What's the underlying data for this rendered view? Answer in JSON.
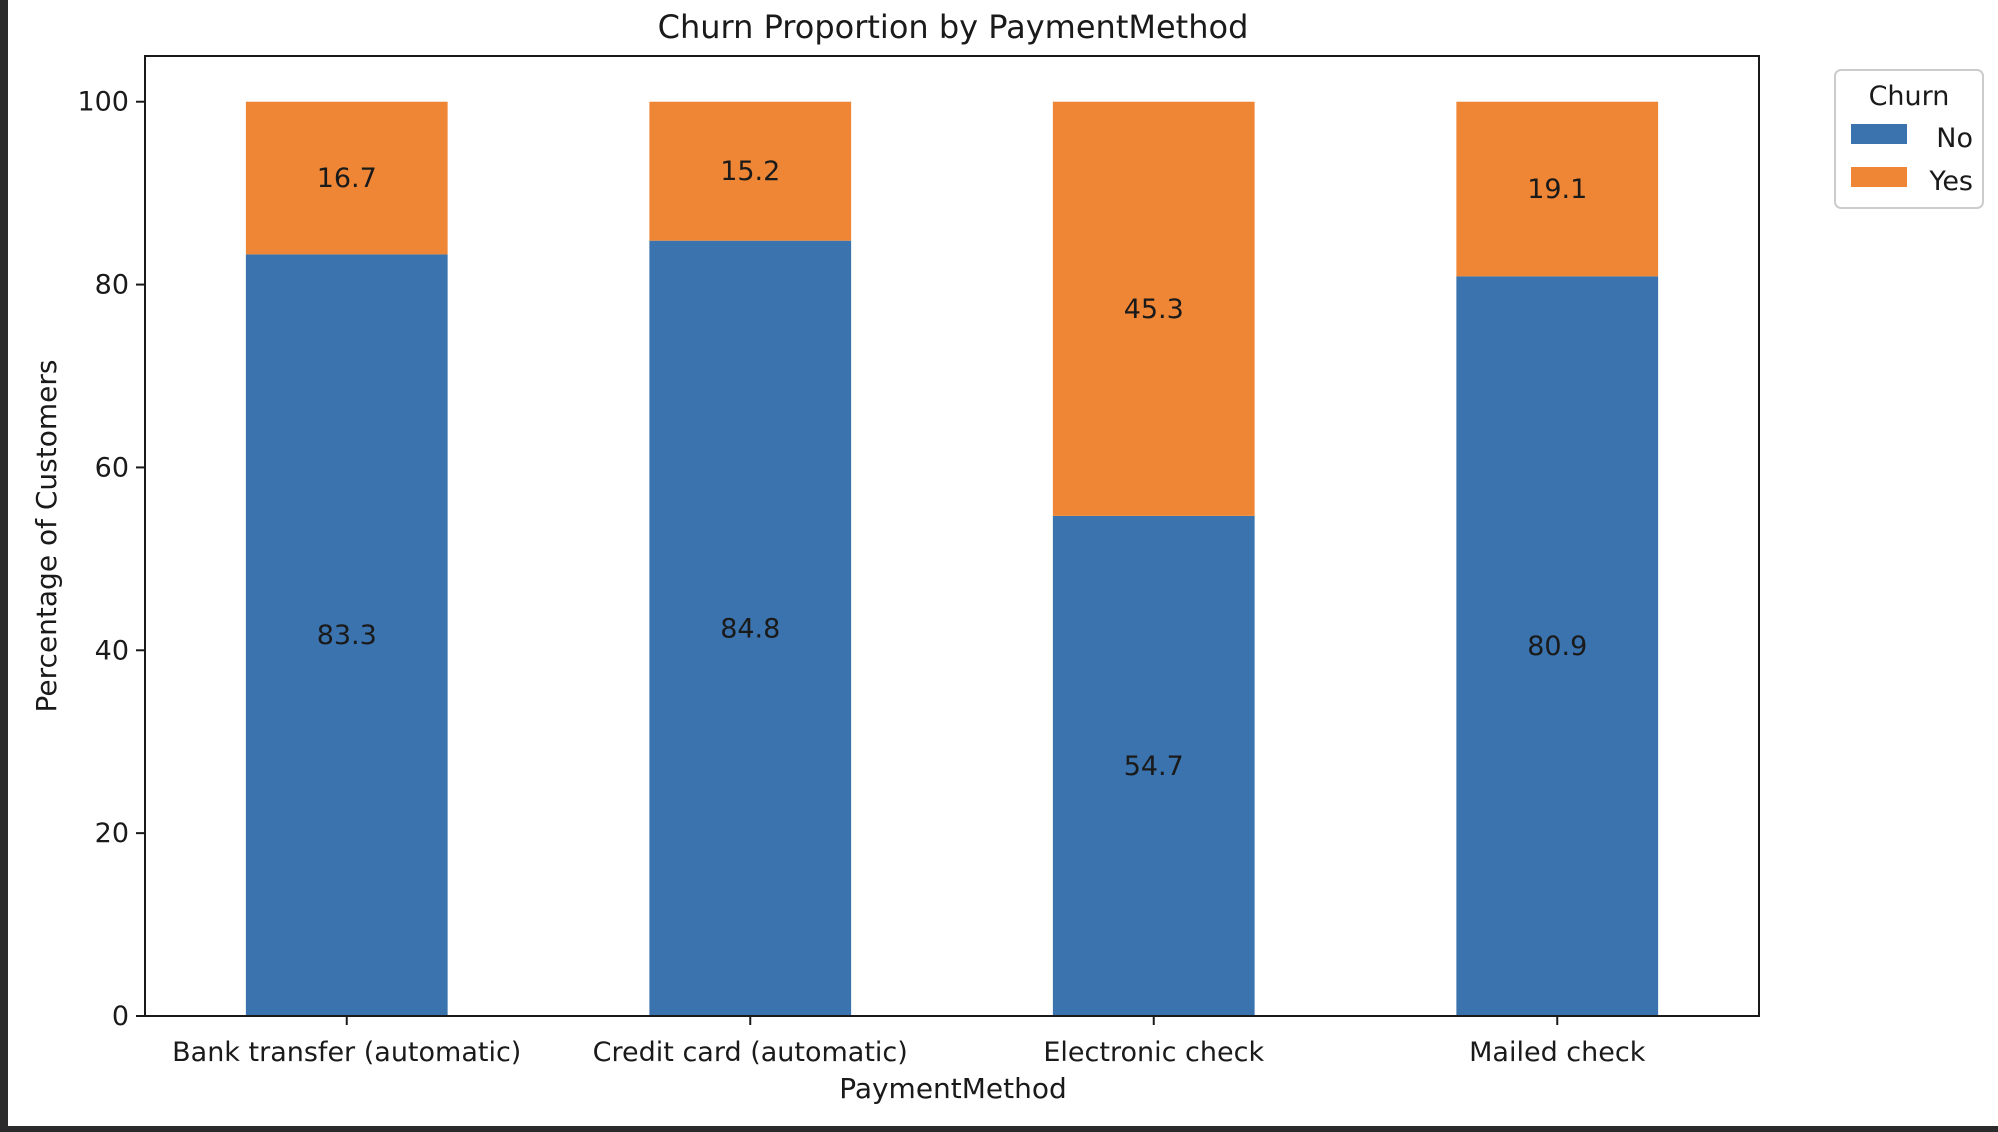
{
  "chart_data": {
    "type": "bar",
    "stacked": true,
    "title": "Churn Proportion by PaymentMethod",
    "xlabel": "PaymentMethod",
    "ylabel": "Percentage of Customers",
    "categories": [
      "Bank transfer (automatic)",
      "Credit card (automatic)",
      "Electronic check",
      "Mailed check"
    ],
    "series": [
      {
        "name": "No",
        "color": "#3a73ae",
        "values": [
          83.3,
          84.8,
          54.7,
          80.9
        ]
      },
      {
        "name": "Yes",
        "color": "#ef8636",
        "values": [
          16.7,
          15.2,
          45.3,
          19.1
        ]
      }
    ],
    "ylim": [
      0,
      105
    ],
    "yticks": [
      0,
      20,
      40,
      60,
      80,
      100
    ],
    "legend": {
      "title": "Churn",
      "position": "outside top-right"
    },
    "grid": false
  }
}
